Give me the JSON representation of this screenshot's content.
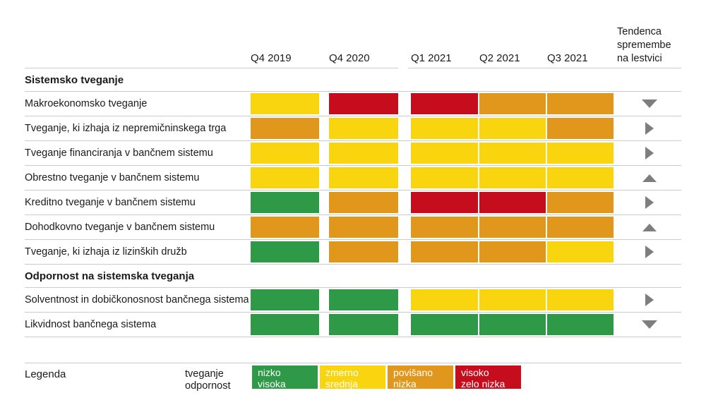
{
  "colors": {
    "line": "#cbcbcb",
    "arrow": "#7e7e7e",
    "text": "#1a1a1a"
  },
  "chart_data": {
    "type": "heatmap",
    "columns": [
      "Q4 2019",
      "Q4 2020",
      "Q1 2021",
      "Q2 2021",
      "Q3 2021"
    ],
    "trend_column": "Tendenca spremembe na lestvici",
    "color_map": {
      "green": "#2e9a48",
      "yellow": "#f8d50f",
      "orange": "#e0971c",
      "red": "#c50d1e"
    },
    "value_meaning": {
      "green": "nizko tveganje / visoka odpornost",
      "yellow": "zmerno tveganje / srednja odpornost",
      "orange": "povišano tveganje / nizka odpornost",
      "red": "visoko tveganje / zelo nizka odpornost"
    },
    "sections": [
      {
        "title": "Sistemsko tveganje",
        "rows": [
          {
            "label": "Makroekonomsko tveganje",
            "values": [
              "yellow",
              "red",
              "red",
              "orange",
              "orange"
            ],
            "trend": "down"
          },
          {
            "label": "Tveganje, ki izhaja iz nepremičninskega trga",
            "values": [
              "orange",
              "yellow",
              "yellow",
              "yellow",
              "orange"
            ],
            "trend": "right"
          },
          {
            "label": "Tveganje financiranja v bančnem sistemu",
            "values": [
              "yellow",
              "yellow",
              "yellow",
              "yellow",
              "yellow"
            ],
            "trend": "right"
          },
          {
            "label": "Obrestno tveganje v bančnem sistemu",
            "values": [
              "yellow",
              "yellow",
              "yellow",
              "yellow",
              "yellow"
            ],
            "trend": "up"
          },
          {
            "label": "Kreditno tveganje v bančnem sistemu",
            "values": [
              "green",
              "orange",
              "red",
              "red",
              "orange"
            ],
            "trend": "right"
          },
          {
            "label": "Dohodkovno tveganje v bančnem sistemu",
            "values": [
              "orange",
              "orange",
              "orange",
              "orange",
              "orange"
            ],
            "trend": "up"
          },
          {
            "label": "Tveganje, ki izhaja iz lizinških družb",
            "values": [
              "green",
              "orange",
              "orange",
              "orange",
              "yellow"
            ],
            "trend": "right"
          }
        ]
      },
      {
        "title": "Odpornost na sistemska tveganja",
        "rows": [
          {
            "label": "Solventnost in dobičkonosnost bančnega sistema",
            "values": [
              "green",
              "green",
              "yellow",
              "yellow",
              "yellow"
            ],
            "trend": "right"
          },
          {
            "label": "Likvidnost bančnega sistema",
            "values": [
              "green",
              "green",
              "green",
              "green",
              "green"
            ],
            "trend": "down"
          }
        ]
      }
    ]
  },
  "legend": {
    "label": "Legenda",
    "row_labels": [
      "tveganje",
      "odpornost"
    ],
    "items": [
      {
        "risk": "nizko",
        "resilience": "visoka",
        "color": "green"
      },
      {
        "risk": "zmerno",
        "resilience": "srednja",
        "color": "yellow"
      },
      {
        "risk": "povišano",
        "resilience": "nizka",
        "color": "orange"
      },
      {
        "risk": "visoko",
        "resilience": "zelo nizka",
        "color": "red"
      }
    ]
  }
}
